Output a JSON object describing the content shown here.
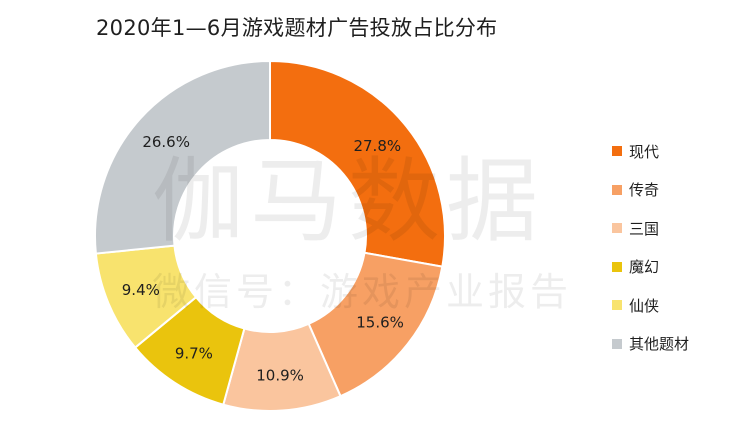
{
  "chart_data": {
    "type": "pie",
    "variant": "donut",
    "title": "2020年1—6月游戏题材广告投放占比分布",
    "categories": [
      "现代",
      "传奇",
      "三国",
      "魔幻",
      "仙侠",
      "其他题材"
    ],
    "values": [
      27.8,
      15.6,
      10.9,
      9.7,
      9.4,
      26.6
    ],
    "value_labels": [
      "27.8%",
      "15.6%",
      "10.9%",
      "9.7%",
      "9.4%",
      "26.6%"
    ],
    "colors": [
      "#F36E0F",
      "#F7A064",
      "#FAC59E",
      "#EAC40D",
      "#F8E36E",
      "#C5CACE"
    ],
    "legend_position": "right",
    "start_angle": "12 o'clock, clockwise"
  },
  "watermark": {
    "line1": "伽马数据",
    "line2": "微信号：游戏产业报告"
  }
}
